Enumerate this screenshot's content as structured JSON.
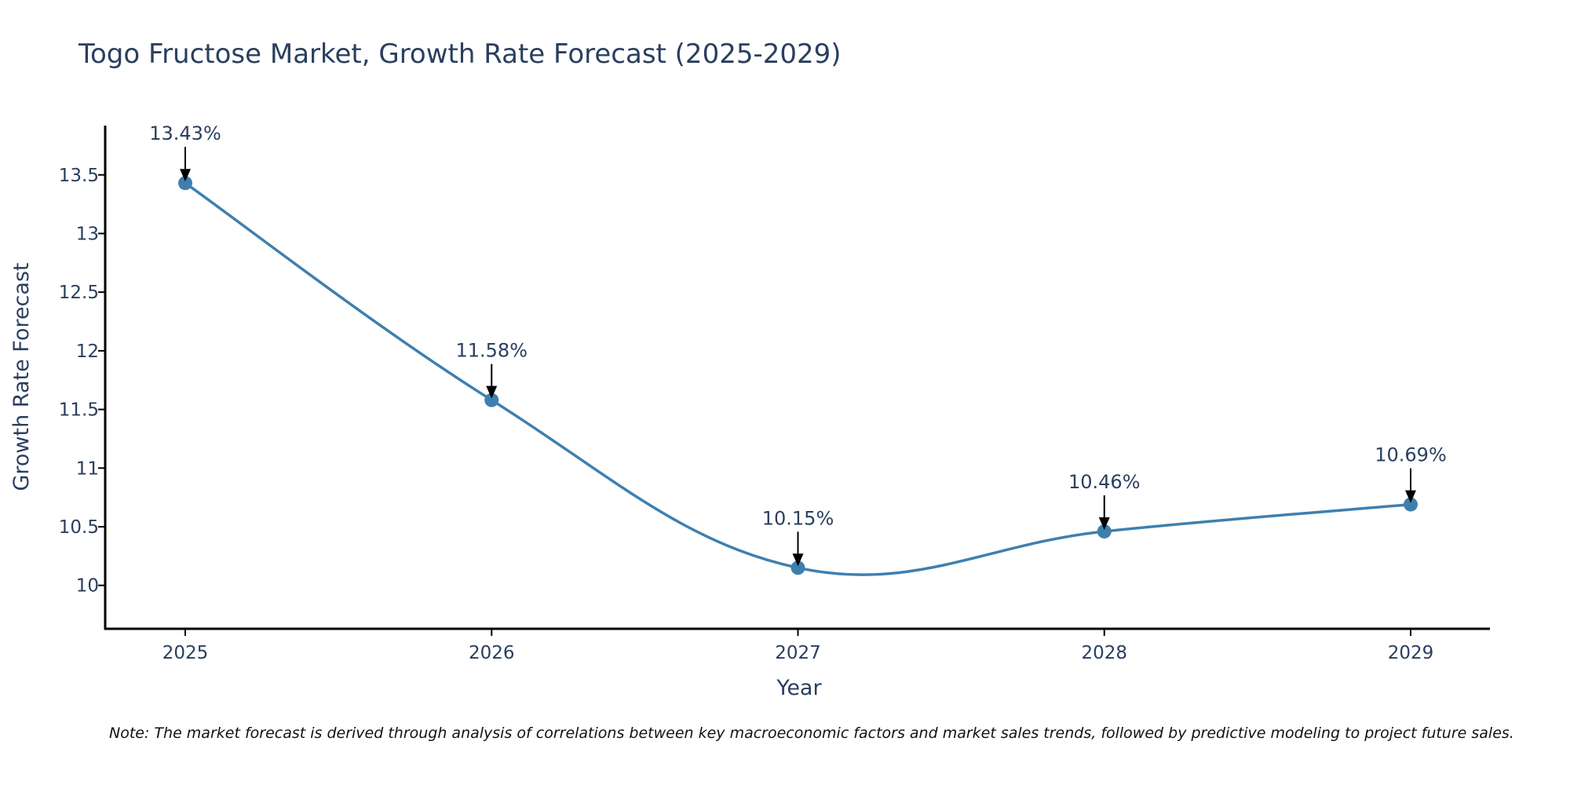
{
  "chart_data": {
    "type": "line",
    "title": "Togo Fructose Market, Growth Rate Forecast (2025-2029)",
    "xlabel": "Year",
    "ylabel": "Growth Rate Forecast",
    "categories": [
      "2025",
      "2026",
      "2027",
      "2028",
      "2029"
    ],
    "series": [
      {
        "name": "Growth Rate Forecast",
        "values": [
          13.43,
          11.58,
          10.15,
          10.46,
          10.69
        ]
      }
    ],
    "data_labels": [
      "13.43%",
      "11.58%",
      "10.15%",
      "10.46%",
      "10.69%"
    ],
    "y_ticks": [
      10,
      10.5,
      11,
      11.5,
      12,
      12.5,
      13,
      13.5
    ],
    "y_tick_labels": [
      "10",
      "10.5",
      "11",
      "11.5",
      "12",
      "12.5",
      "13",
      "13.5"
    ],
    "ylim": [
      9.63,
      13.92
    ],
    "grid": false,
    "note": "Note: The market forecast is derived through analysis of correlations between key macroeconomic factors and market sales trends, followed by predictive modeling to project future sales."
  },
  "colors": {
    "line": "#3f7fae",
    "marker": "#3f7fae",
    "text": "#2a3f5f",
    "axis": "#000000",
    "arrow": "#000000"
  }
}
